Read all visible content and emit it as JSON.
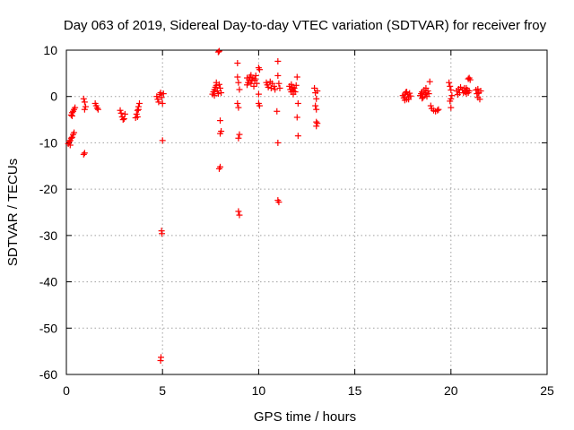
{
  "chart_data": {
    "type": "scatter",
    "title": "Day 063 of 2019, Sidereal Day-to-day VTEC variation (SDTVAR) for receiver froy",
    "xlabel": "GPS time / hours",
    "ylabel": "SDTVAR / TECUs",
    "xlim": [
      0,
      25
    ],
    "ylim": [
      -60,
      10
    ],
    "xticks": [
      0,
      5,
      10,
      15,
      20,
      25
    ],
    "yticks": [
      10,
      0,
      -10,
      -20,
      -30,
      -40,
      -50,
      -60
    ],
    "grid": true,
    "marker": "+",
    "marker_color": "#ff0000",
    "series": [
      {
        "name": "SDTVAR",
        "points": [
          [
            0.1,
            -10.2
          ],
          [
            0.15,
            -9.8
          ],
          [
            0.2,
            -9.5
          ],
          [
            0.25,
            -9.0
          ],
          [
            0.3,
            -8.8
          ],
          [
            0.35,
            -8.2
          ],
          [
            0.4,
            -7.8
          ],
          [
            0.2,
            -10.5
          ],
          [
            0.25,
            -4.0
          ],
          [
            0.3,
            -3.5
          ],
          [
            0.35,
            -3.2
          ],
          [
            0.4,
            -2.8
          ],
          [
            0.45,
            -2.4
          ],
          [
            0.3,
            -4.2
          ],
          [
            0.9,
            -12.5
          ],
          [
            0.95,
            -12.2
          ],
          [
            0.9,
            -0.5
          ],
          [
            0.95,
            -1.2
          ],
          [
            1.0,
            -2.2
          ],
          [
            0.95,
            -2.8
          ],
          [
            1.5,
            -1.5
          ],
          [
            1.55,
            -2.0
          ],
          [
            1.6,
            -2.5
          ],
          [
            1.65,
            -2.8
          ],
          [
            2.8,
            -3.0
          ],
          [
            2.85,
            -3.6
          ],
          [
            2.9,
            -4.4
          ],
          [
            2.95,
            -5.0
          ],
          [
            3.0,
            -4.8
          ],
          [
            3.05,
            -3.8
          ],
          [
            3.6,
            -4.6
          ],
          [
            3.65,
            -3.8
          ],
          [
            3.7,
            -3.0
          ],
          [
            3.75,
            -2.2
          ],
          [
            3.8,
            -1.5
          ],
          [
            3.7,
            -4.4
          ],
          [
            3.75,
            -2.8
          ],
          [
            4.9,
            -57.0
          ],
          [
            4.92,
            -56.3
          ],
          [
            4.95,
            -29.0
          ],
          [
            4.97,
            -29.6
          ],
          [
            5.0,
            -9.5
          ],
          [
            4.7,
            0.0
          ],
          [
            4.75,
            -0.6
          ],
          [
            4.8,
            -1.2
          ],
          [
            4.85,
            0.4
          ],
          [
            4.9,
            0.8
          ],
          [
            4.95,
            -0.2
          ],
          [
            5.0,
            -1.5
          ],
          [
            5.05,
            0.6
          ],
          [
            7.6,
            0.5
          ],
          [
            7.65,
            1.0
          ],
          [
            7.7,
            1.5
          ],
          [
            7.75,
            2.0
          ],
          [
            7.8,
            2.4
          ],
          [
            7.85,
            1.2
          ],
          [
            7.9,
            0.6
          ],
          [
            7.95,
            2.6
          ],
          [
            8.0,
            1.8
          ],
          [
            8.05,
            0.8
          ],
          [
            7.9,
            9.6
          ],
          [
            7.95,
            9.8
          ],
          [
            8.0,
            -5.2
          ],
          [
            8.05,
            -7.5
          ],
          [
            8.0,
            -8.0
          ],
          [
            7.95,
            -15.6
          ],
          [
            8.0,
            -15.2
          ],
          [
            7.7,
            0.2
          ],
          [
            7.8,
            3.0
          ],
          [
            8.9,
            7.2
          ],
          [
            8.9,
            4.2
          ],
          [
            8.95,
            3.0
          ],
          [
            9.0,
            1.5
          ],
          [
            8.9,
            -1.5
          ],
          [
            8.95,
            -2.4
          ],
          [
            9.0,
            -8.2
          ],
          [
            8.95,
            -9.0
          ],
          [
            8.95,
            -24.8
          ],
          [
            9.0,
            -25.6
          ],
          [
            9.4,
            2.5
          ],
          [
            9.45,
            3.0
          ],
          [
            9.5,
            3.6
          ],
          [
            9.55,
            4.2
          ],
          [
            9.6,
            2.8
          ],
          [
            9.65,
            3.4
          ],
          [
            9.7,
            4.0
          ],
          [
            9.75,
            2.2
          ],
          [
            9.8,
            3.5
          ],
          [
            9.85,
            4.5
          ],
          [
            9.9,
            2.8
          ],
          [
            9.4,
            4.0
          ],
          [
            9.6,
            4.6
          ],
          [
            9.8,
            3.8
          ],
          [
            10.0,
            6.2
          ],
          [
            10.05,
            5.8
          ],
          [
            10.0,
            0.5
          ],
          [
            10.0,
            -1.5
          ],
          [
            10.05,
            -2.0
          ],
          [
            10.4,
            3.0
          ],
          [
            10.45,
            2.5
          ],
          [
            10.5,
            2.0
          ],
          [
            10.6,
            3.2
          ],
          [
            10.65,
            1.8
          ],
          [
            10.7,
            2.8
          ],
          [
            10.8,
            2.2
          ],
          [
            10.85,
            1.5
          ],
          [
            11.0,
            7.6
          ],
          [
            11.0,
            4.5
          ],
          [
            11.05,
            2.8
          ],
          [
            11.1,
            1.8
          ],
          [
            10.95,
            -3.2
          ],
          [
            11.0,
            -10.0
          ],
          [
            11.0,
            -22.4
          ],
          [
            11.05,
            -22.8
          ],
          [
            11.6,
            2.2
          ],
          [
            11.65,
            1.5
          ],
          [
            11.7,
            1.0
          ],
          [
            11.75,
            2.0
          ],
          [
            11.8,
            0.5
          ],
          [
            11.85,
            1.8
          ],
          [
            11.9,
            1.0
          ],
          [
            11.95,
            2.4
          ],
          [
            11.7,
            2.6
          ],
          [
            11.8,
            1.2
          ],
          [
            12.0,
            4.2
          ],
          [
            12.05,
            -1.5
          ],
          [
            12.0,
            -4.5
          ],
          [
            12.05,
            -8.5
          ],
          [
            12.9,
            1.8
          ],
          [
            12.95,
            0.8
          ],
          [
            13.0,
            -0.5
          ],
          [
            13.05,
            1.2
          ],
          [
            12.95,
            -2.0
          ],
          [
            13.0,
            -2.8
          ],
          [
            13.05,
            -5.8
          ],
          [
            13.0,
            -6.4
          ],
          [
            13.0,
            -5.5
          ],
          [
            17.5,
            0.2
          ],
          [
            17.55,
            -0.3
          ],
          [
            17.6,
            0.5
          ],
          [
            17.65,
            0.9
          ],
          [
            17.7,
            -0.6
          ],
          [
            17.75,
            0.4
          ],
          [
            17.8,
            -0.2
          ],
          [
            17.85,
            0.7
          ],
          [
            17.9,
            0.1
          ],
          [
            17.6,
            -0.8
          ],
          [
            17.7,
            1.0
          ],
          [
            17.8,
            -0.6
          ],
          [
            18.4,
            0.2
          ],
          [
            18.45,
            0.6
          ],
          [
            18.5,
            1.0
          ],
          [
            18.55,
            -0.2
          ],
          [
            18.6,
            1.4
          ],
          [
            18.65,
            0.4
          ],
          [
            18.7,
            1.8
          ],
          [
            18.75,
            0.0
          ],
          [
            18.8,
            1.2
          ],
          [
            18.85,
            0.6
          ],
          [
            18.5,
            -0.4
          ],
          [
            18.7,
            0.8
          ],
          [
            18.9,
            3.2
          ],
          [
            18.95,
            -2.0
          ],
          [
            19.0,
            -2.6
          ],
          [
            19.1,
            -3.0
          ],
          [
            19.2,
            -3.2
          ],
          [
            19.3,
            -3.0
          ],
          [
            19.35,
            -2.8
          ],
          [
            19.9,
            3.0
          ],
          [
            19.95,
            2.2
          ],
          [
            20.0,
            1.4
          ],
          [
            20.05,
            0.2
          ],
          [
            19.95,
            -1.0
          ],
          [
            20.0,
            -2.4
          ],
          [
            20.0,
            -0.5
          ],
          [
            20.3,
            1.2
          ],
          [
            20.35,
            0.4
          ],
          [
            20.4,
            1.6
          ],
          [
            20.45,
            0.8
          ],
          [
            20.5,
            2.0
          ],
          [
            20.6,
            1.4
          ],
          [
            20.65,
            0.8
          ],
          [
            20.7,
            1.8
          ],
          [
            20.75,
            1.0
          ],
          [
            20.8,
            0.6
          ],
          [
            20.85,
            1.4
          ],
          [
            20.9,
            0.8
          ],
          [
            20.95,
            1.2
          ],
          [
            20.8,
            1.8
          ],
          [
            20.9,
            3.8
          ],
          [
            20.95,
            4.0
          ],
          [
            21.0,
            3.6
          ],
          [
            21.3,
            1.4
          ],
          [
            21.35,
            0.6
          ],
          [
            21.4,
            -0.2
          ],
          [
            21.45,
            0.8
          ],
          [
            21.5,
            -0.6
          ],
          [
            21.55,
            1.2
          ],
          [
            21.4,
            1.6
          ]
        ]
      }
    ]
  }
}
